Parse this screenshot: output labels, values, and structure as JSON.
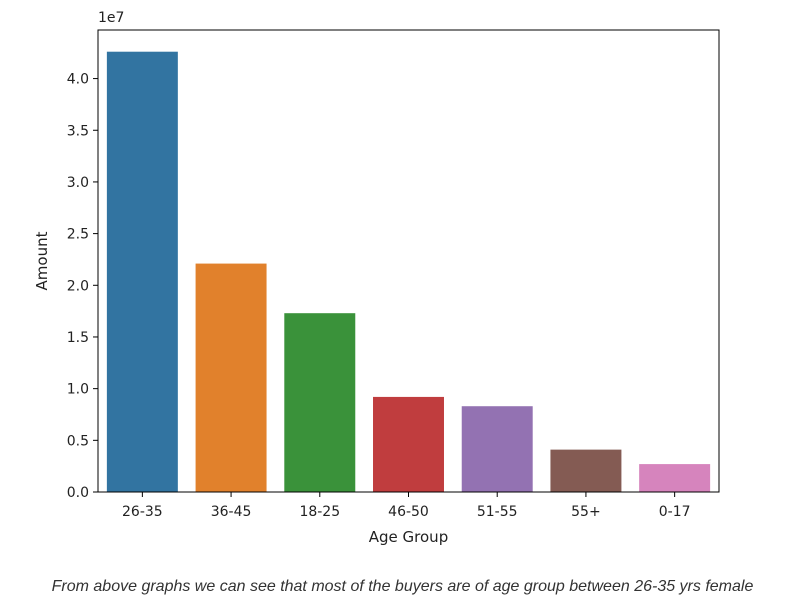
{
  "chart_data": {
    "type": "bar",
    "categories": [
      "26-35",
      "36-45",
      "18-25",
      "46-50",
      "51-55",
      "55+",
      "0-17"
    ],
    "values": [
      42600000,
      22100000,
      17300000,
      9200000,
      8300000,
      4100000,
      2700000
    ],
    "colors": [
      "#3274a1",
      "#e1812c",
      "#3a923a",
      "#c03d3e",
      "#9372b2",
      "#845b53",
      "#d684bd"
    ],
    "xlabel": "Age Group",
    "ylabel": "Amount",
    "y_offset_label": "1e7",
    "y_ticks": [
      0,
      5000000,
      10000000,
      15000000,
      20000000,
      25000000,
      30000000,
      35000000,
      40000000
    ],
    "y_tick_labels": [
      "0.0",
      "0.5",
      "1.0",
      "1.5",
      "2.0",
      "2.5",
      "3.0",
      "3.5",
      "4.0"
    ],
    "ylim": [
      0,
      44700000
    ],
    "grid": false
  },
  "caption": "From above graphs we can see that most of the buyers are of age group between 26-35 yrs female"
}
